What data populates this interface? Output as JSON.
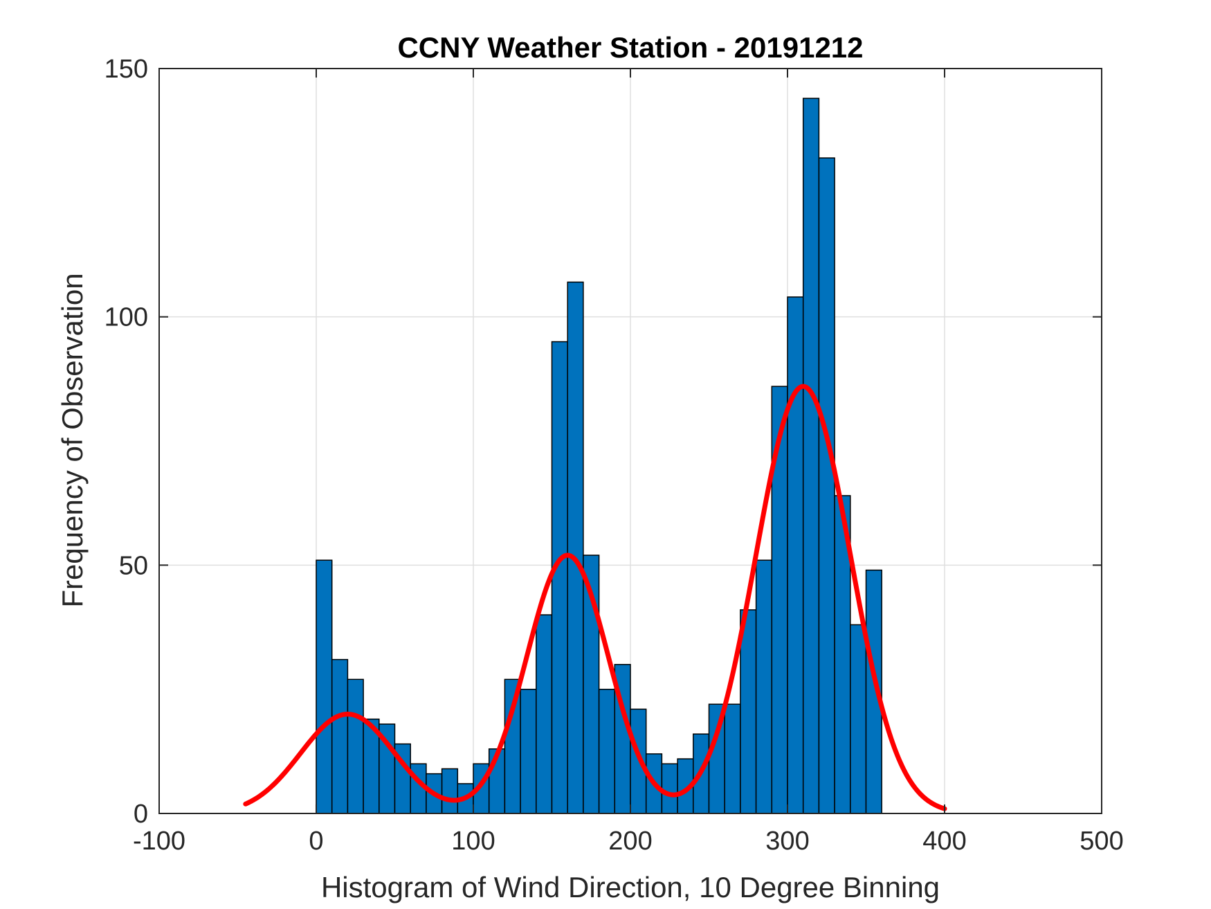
{
  "chart_data": {
    "type": "bar",
    "title": "CCNY Weather Station - 20191212",
    "xlabel": "Histogram of Wind Direction, 10 Degree Binning",
    "ylabel": "Frequency of Observation",
    "xlim": [
      -100,
      500
    ],
    "ylim": [
      0,
      150
    ],
    "xticks": [
      -100,
      0,
      100,
      200,
      300,
      400,
      500
    ],
    "yticks": [
      0,
      50,
      100,
      150
    ],
    "xtick_labels": [
      "-100",
      "0",
      "100",
      "200",
      "300",
      "400",
      "500"
    ],
    "ytick_labels": [
      "0",
      "50",
      "100",
      "150"
    ],
    "grid": true,
    "bin_width": 10,
    "bin_edges_start": [
      0,
      10,
      20,
      30,
      40,
      50,
      60,
      70,
      80,
      90,
      100,
      110,
      120,
      130,
      140,
      150,
      160,
      170,
      180,
      190,
      200,
      210,
      220,
      230,
      240,
      250,
      260,
      270,
      280,
      290,
      300,
      310,
      320,
      330,
      340,
      350
    ],
    "values": [
      51,
      31,
      27,
      19,
      18,
      14,
      10,
      8,
      9,
      6,
      10,
      13,
      27,
      25,
      40,
      95,
      107,
      52,
      25,
      30,
      21,
      12,
      10,
      11,
      16,
      22,
      22,
      41,
      51,
      86,
      104,
      144,
      132,
      64,
      38,
      49
    ],
    "bar_color": "#0072BD",
    "bar_edge_color": "#000000",
    "fit_curve": {
      "name": "fit",
      "color": "#FF0000",
      "x_range": [
        -45,
        400
      ],
      "components": [
        {
          "mean": 20,
          "sd": 30,
          "peak": 20
        },
        {
          "mean": 160,
          "sd": 26,
          "peak": 52
        },
        {
          "mean": 310,
          "sd": 30,
          "peak": 86
        }
      ]
    }
  },
  "colors": {
    "axes": "#262626",
    "grid": "#dfdfdf",
    "background": "#ffffff"
  }
}
